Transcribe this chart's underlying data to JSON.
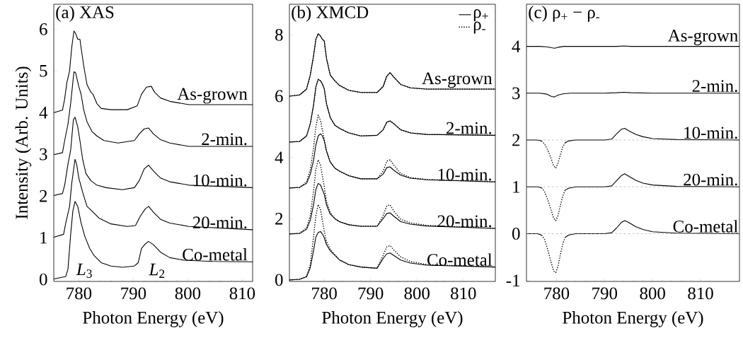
{
  "chart_data": [
    {
      "type": "line",
      "title": "(a) XAS",
      "xlabel": "Photon Energy (eV)",
      "ylabel": "Intensity (Arb. Units)",
      "xlim": [
        775.4,
        811.9
      ],
      "ylim": [
        -0.05,
        6.6
      ],
      "xticks": [
        780,
        790,
        800,
        810
      ],
      "yticks": [
        0,
        1,
        2,
        3,
        4,
        5,
        6
      ],
      "series": [
        {
          "color": "#000000",
          "x": [
            775.4,
            777.0,
            777.4,
            777.8,
            778.3,
            778.7,
            779.1,
            779.4,
            779.8,
            780.2,
            780.4,
            780.9,
            781.5,
            782.2,
            782.6,
            783.3,
            784.1,
            785.9,
            788.9,
            790.7,
            791.5,
            792.4,
            793.3,
            793.9,
            795.0,
            796.7,
            800.2,
            811.9
          ],
          "values": [
            4.0,
            4.06,
            4.33,
            4.72,
            5.0,
            5.57,
            5.96,
            5.9,
            5.76,
            5.76,
            5.57,
            5.12,
            4.67,
            4.49,
            4.44,
            4.22,
            4.1,
            4.07,
            4.07,
            4.16,
            4.44,
            4.61,
            4.63,
            4.49,
            4.35,
            4.27,
            4.19,
            4.19
          ]
        },
        {
          "color": "#000000",
          "x": [
            775.4,
            777.0,
            777.4,
            778.0,
            778.5,
            779.1,
            779.4,
            780.0,
            780.4,
            780.9,
            781.5,
            782.4,
            783.3,
            784.6,
            787.2,
            790.2,
            791.1,
            792.0,
            792.8,
            793.7,
            795.0,
            796.7,
            800.2,
            811.9
          ],
          "values": [
            2.99,
            3.04,
            3.33,
            3.72,
            4.22,
            4.98,
            4.96,
            4.62,
            4.45,
            4.06,
            3.78,
            3.55,
            3.44,
            3.33,
            3.27,
            3.33,
            3.49,
            3.61,
            3.63,
            3.49,
            3.35,
            3.27,
            3.19,
            3.19
          ]
        },
        {
          "color": "#000000",
          "x": [
            775.4,
            777.0,
            777.4,
            778.0,
            778.5,
            779.0,
            779.3,
            779.8,
            780.2,
            780.7,
            781.3,
            782.2,
            783.3,
            785.0,
            788.0,
            790.2,
            791.1,
            792.0,
            792.8,
            793.7,
            795.0,
            796.7,
            800.2,
            811.9
          ],
          "values": [
            2.01,
            2.06,
            2.26,
            2.76,
            3.1,
            3.83,
            3.89,
            3.66,
            3.33,
            2.88,
            2.54,
            2.37,
            2.26,
            2.2,
            2.15,
            2.2,
            2.37,
            2.65,
            2.74,
            2.6,
            2.43,
            2.34,
            2.26,
            2.2
          ]
        },
        {
          "color": "#000000",
          "x": [
            775.4,
            777.2,
            777.6,
            778.3,
            778.7,
            779.3,
            779.6,
            780.0,
            780.7,
            781.5,
            782.4,
            783.7,
            785.9,
            788.9,
            790.4,
            791.3,
            792.2,
            792.8,
            793.7,
            795.0,
            796.7,
            800.2,
            811.9
          ],
          "values": [
            1.01,
            1.08,
            1.35,
            1.75,
            2.31,
            2.88,
            2.76,
            2.43,
            2.09,
            1.75,
            1.64,
            1.47,
            1.33,
            1.27,
            1.29,
            1.52,
            1.69,
            1.75,
            1.61,
            1.44,
            1.35,
            1.27,
            1.19
          ]
        },
        {
          "color": "#000000",
          "x": [
            775.4,
            777.6,
            778.0,
            778.5,
            778.9,
            779.3,
            779.8,
            780.4,
            781.1,
            782.0,
            782.8,
            784.1,
            785.9,
            788.0,
            790.2,
            790.9,
            791.5,
            792.2,
            792.8,
            793.7,
            795.0,
            796.7,
            799.3,
            804.6,
            811.9
          ],
          "values": [
            0.01,
            0.07,
            0.24,
            1.08,
            1.64,
            1.87,
            1.75,
            1.36,
            1.03,
            0.74,
            0.57,
            0.4,
            0.32,
            0.29,
            0.32,
            0.4,
            0.74,
            0.85,
            0.91,
            0.83,
            0.65,
            0.52,
            0.46,
            0.43,
            0.42
          ]
        }
      ],
      "annotations": [
        {
          "text": "As-grown",
          "x": 811.2,
          "y": 4.19
        },
        {
          "text": "2-min.",
          "x": 811.2,
          "y": 3.19
        },
        {
          "text": "10-min.",
          "x": 811.2,
          "y": 2.2
        },
        {
          "text": "20-min.",
          "x": 811.2,
          "y": 1.19
        },
        {
          "text": "Co-metal",
          "x": 811.2,
          "y": 0.42
        },
        "*L*$_{3}$",
        "*L*$_{2}$"
      ]
    },
    {
      "type": "line",
      "title": "(b) XMCD",
      "xlabel": "Photon Energy (eV)",
      "legend": "top right",
      "xlim": [
        772.5,
        816.9
      ],
      "ylim": [
        -0.05,
        9.0
      ],
      "xticks": [
        780,
        790,
        800,
        810
      ],
      "yticks": [
        0,
        2,
        4,
        6,
        8
      ],
      "x": [
        772.5,
        774.7,
        776.2,
        777.0,
        777.7,
        778.2,
        778.7,
        779.2,
        779.6,
        780.0,
        780.5,
        781.3,
        782.3,
        783.3,
        785.3,
        787.9,
        791.4,
        792.7,
        793.5,
        794.2,
        795.0,
        796.5,
        798.6,
        802.1,
        816.9
      ],
      "series": [
        {
          "name": "ρ$_{+}$",
          "color": "#000000",
          "line_style": "solid",
          "values": [
            6.0,
            6.04,
            6.23,
            6.69,
            7.31,
            7.85,
            8.04,
            7.96,
            7.85,
            7.81,
            7.23,
            6.69,
            6.5,
            6.35,
            6.19,
            6.12,
            6.12,
            6.31,
            6.65,
            6.77,
            6.62,
            6.38,
            6.27,
            6.23,
            6.23
          ]
        },
        {
          "name": "ρ$_{-}$",
          "color": "#000000",
          "line_style": "dotted",
          "values": [
            6.0,
            6.04,
            6.23,
            6.69,
            7.31,
            7.85,
            8.04,
            7.96,
            7.85,
            7.81,
            7.23,
            6.69,
            6.5,
            6.35,
            6.19,
            6.12,
            6.12,
            6.31,
            6.65,
            6.77,
            6.62,
            6.38,
            6.27,
            6.23,
            6.23
          ]
        },
        {
          "color": "#000000",
          "line_style": "solid",
          "values": [
            4.5,
            4.52,
            4.7,
            5.1,
            5.7,
            6.3,
            6.55,
            6.5,
            6.4,
            6.25,
            5.75,
            5.3,
            5.05,
            4.95,
            4.8,
            4.7,
            4.72,
            4.9,
            5.15,
            5.19,
            5.1,
            4.9,
            4.8,
            4.75,
            4.72
          ]
        },
        {
          "color": "#000000",
          "line_style": "dotted",
          "values": [
            4.5,
            4.52,
            4.7,
            5.1,
            5.7,
            6.3,
            6.55,
            6.5,
            6.4,
            6.25,
            5.75,
            5.3,
            5.05,
            4.95,
            4.8,
            4.7,
            4.72,
            4.9,
            5.15,
            5.19,
            5.1,
            4.9,
            4.8,
            4.75,
            4.72
          ]
        },
        {
          "color": "#000000",
          "line_style": "solid",
          "values": [
            3.0,
            3.02,
            3.15,
            3.45,
            3.9,
            4.4,
            4.7,
            4.77,
            4.7,
            4.55,
            4.2,
            3.85,
            3.65,
            3.55,
            3.4,
            3.3,
            3.3,
            3.45,
            3.67,
            3.69,
            3.58,
            3.42,
            3.32,
            3.27,
            3.2
          ]
        },
        {
          "color": "#000000",
          "line_style": "dotted",
          "values": [
            3.0,
            3.02,
            3.2,
            3.6,
            4.3,
            5.0,
            5.38,
            5.2,
            4.9,
            4.6,
            4.2,
            3.85,
            3.65,
            3.55,
            3.4,
            3.3,
            3.3,
            3.55,
            3.88,
            3.92,
            3.75,
            3.47,
            3.34,
            3.28,
            3.2
          ]
        },
        {
          "color": "#000000",
          "line_style": "solid",
          "values": [
            1.5,
            1.52,
            1.65,
            1.95,
            2.45,
            2.95,
            3.15,
            3.1,
            2.95,
            2.8,
            2.45,
            2.15,
            2.0,
            1.9,
            1.8,
            1.75,
            1.75,
            2.0,
            2.17,
            2.19,
            2.08,
            1.9,
            1.82,
            1.76,
            1.68
          ]
        },
        {
          "color": "#000000",
          "line_style": "dotted",
          "values": [
            1.5,
            1.52,
            1.7,
            2.1,
            2.9,
            3.6,
            3.92,
            3.75,
            3.4,
            3.05,
            2.55,
            2.2,
            2.0,
            1.9,
            1.8,
            1.75,
            1.75,
            2.1,
            2.42,
            2.45,
            2.25,
            1.98,
            1.86,
            1.78,
            1.68
          ]
        },
        {
          "color": "#000000",
          "line_style": "solid",
          "values": [
            0.0,
            0.02,
            0.1,
            0.4,
            0.95,
            1.4,
            1.55,
            1.58,
            1.5,
            1.38,
            1.15,
            0.95,
            0.8,
            0.65,
            0.5,
            0.42,
            0.38,
            0.7,
            0.85,
            0.88,
            0.8,
            0.65,
            0.55,
            0.48,
            0.42
          ]
        },
        {
          "color": "#000000",
          "line_style": "dotted",
          "values": [
            0.0,
            0.02,
            0.12,
            0.5,
            1.4,
            2.1,
            2.46,
            2.3,
            1.95,
            1.6,
            1.25,
            1.0,
            0.82,
            0.66,
            0.5,
            0.42,
            0.38,
            0.8,
            1.08,
            1.12,
            0.98,
            0.75,
            0.6,
            0.5,
            0.42
          ]
        }
      ],
      "annotations": [
        {
          "text": "As-grown",
          "x": 816.5,
          "y": 6.23
        },
        {
          "text": "2-min.",
          "x": 816.5,
          "y": 4.72
        },
        {
          "text": "10-min.",
          "x": 816.5,
          "y": 3.2
        },
        {
          "text": "20-min.",
          "x": 816.5,
          "y": 1.68
        },
        {
          "text": "Co-metal",
          "x": 816.5,
          "y": 0.42
        }
      ]
    },
    {
      "type": "line",
      "title": "(c) ρ$_{+}$ − ρ$_{-}$",
      "xlabel": "Photon Energy (eV)",
      "xlim": [
        773.75,
        818.1
      ],
      "ylim": [
        -1.02,
        4.9
      ],
      "xticks": [
        780,
        790,
        800,
        810
      ],
      "yticks": [
        -1,
        0,
        1,
        2,
        3,
        4
      ],
      "series": [
        {
          "color": "#000000",
          "line_style": "solid",
          "x": [
            773.75,
            776.5,
            778.0,
            779.0,
            779.6,
            780.3,
            781.5,
            783.0,
            790.0,
            792.5,
            794.0,
            795.5,
            800.0,
            818.1
          ],
          "values": [
            4.0,
            4.0,
            3.99,
            3.97,
            3.96,
            3.98,
            4.0,
            4.0,
            4.0,
            4.0,
            4.01,
            4.0,
            4.0,
            4.0
          ]
        },
        {
          "color": "#000000",
          "line_style": "solid",
          "x": [
            773.75,
            776.5,
            778.0,
            779.0,
            779.6,
            780.3,
            781.5,
            783.0,
            790.0,
            792.5,
            794.0,
            795.5,
            800.0,
            818.1
          ],
          "values": [
            3.0,
            3.0,
            2.98,
            2.93,
            2.92,
            2.96,
            2.99,
            3.0,
            3.0,
            3.01,
            3.02,
            3.01,
            3.0,
            3.0
          ]
        },
        {
          "color": "#000000",
          "line_style": "solid",
          "x": [
            773.75,
            776.0,
            776.9,
            779.85,
            781.8,
            782.5,
            784.0,
            790.0,
            791.5,
            792.5,
            793.5,
            794.2,
            795.0,
            796.5,
            798.0,
            800.0,
            805.0,
            818.1
          ],
          "values": [
            2.0,
            2.0,
            1.98,
            null,
            1.94,
            1.98,
            2.0,
            2.0,
            2.02,
            2.13,
            2.23,
            2.25,
            2.2,
            2.12,
            2.07,
            2.03,
            2.01,
            2.0
          ]
        },
        {
          "color": "#000000",
          "line_style": "dotted",
          "x": [
            776.9,
            777.5,
            778.2,
            778.9,
            779.4,
            779.85,
            780.3,
            780.8,
            781.3,
            781.8
          ],
          "values": [
            1.98,
            1.92,
            1.78,
            1.6,
            1.45,
            1.4,
            1.5,
            1.68,
            1.85,
            1.94
          ]
        },
        {
          "color": "#000000",
          "line_style": "solid",
          "x": [
            773.75,
            776.0,
            776.9,
            779.85,
            781.8,
            782.5,
            784.0,
            790.0,
            791.5,
            792.5,
            793.5,
            794.2,
            795.0,
            796.5,
            798.0,
            800.0,
            805.0,
            818.1
          ],
          "values": [
            1.0,
            1.0,
            0.98,
            null,
            0.93,
            0.97,
            1.0,
            1.0,
            1.02,
            1.13,
            1.24,
            1.28,
            1.23,
            1.14,
            1.08,
            1.04,
            1.01,
            1.0
          ]
        },
        {
          "color": "#000000",
          "line_style": "dotted",
          "x": [
            776.9,
            777.5,
            778.2,
            778.9,
            779.4,
            779.85,
            780.3,
            780.8,
            781.3,
            781.8
          ],
          "values": [
            0.98,
            0.9,
            0.72,
            0.5,
            0.33,
            0.28,
            0.38,
            0.6,
            0.8,
            0.93
          ]
        },
        {
          "color": "#000000",
          "line_style": "solid",
          "x": [
            773.75,
            776.0,
            776.9,
            779.85,
            781.8,
            782.5,
            784.0,
            790.0,
            791.5,
            792.5,
            793.5,
            794.2,
            795.0,
            796.5,
            798.0,
            800.0,
            805.0,
            818.1
          ],
          "values": [
            0.0,
            0.0,
            -0.03,
            null,
            -0.08,
            -0.03,
            0.0,
            0.0,
            0.02,
            0.12,
            0.24,
            0.28,
            0.24,
            0.15,
            0.09,
            0.04,
            0.01,
            0.0
          ]
        },
        {
          "color": "#000000",
          "line_style": "dotted",
          "x": [
            776.9,
            777.5,
            778.2,
            778.9,
            779.4,
            779.85,
            780.3,
            780.8,
            781.3,
            781.8
          ],
          "values": [
            -0.03,
            -0.12,
            -0.35,
            -0.62,
            -0.8,
            -0.83,
            -0.7,
            -0.45,
            -0.22,
            -0.08
          ]
        }
      ],
      "ref_lines": [
        {
          "axis": "y",
          "value": 0,
          "color": "#888888",
          "line_style": "dashed"
        },
        {
          "axis": "y",
          "value": 1,
          "color": "#888888",
          "line_style": "dashed"
        },
        {
          "axis": "y",
          "value": 2,
          "color": "#888888",
          "line_style": "dashed"
        }
      ],
      "annotations": [
        {
          "text": "As-grown",
          "x": 818.1,
          "y": 4.0
        },
        {
          "text": "2-min.",
          "x": 818.1,
          "y": 3.0
        },
        {
          "text": "10-min.",
          "x": 818.1,
          "y": 2.0
        },
        {
          "text": "20-min.",
          "x": 818.1,
          "y": 1.0
        },
        {
          "text": "Co-metal",
          "x": 818.1,
          "y": 0.0
        }
      ]
    }
  ]
}
